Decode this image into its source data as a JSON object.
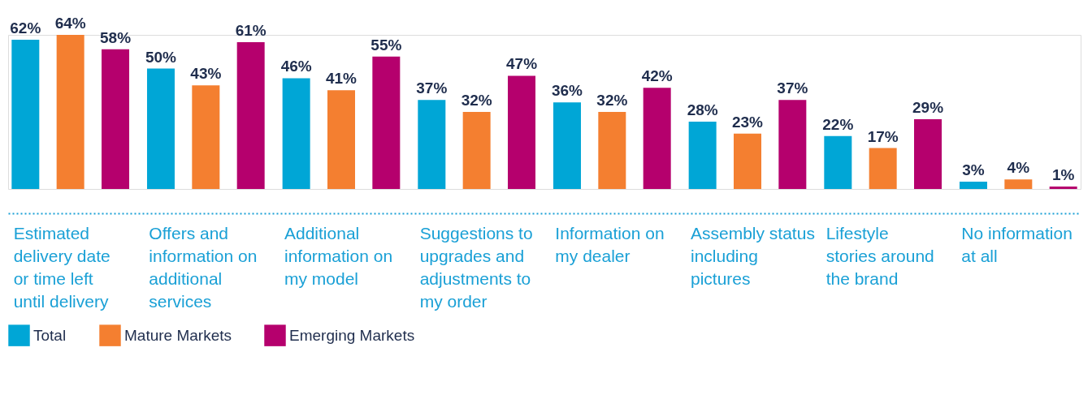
{
  "chart_data": {
    "type": "bar",
    "categories": [
      "Estimated delivery date or time left until delivery",
      "Offers and information on additional services",
      "Additional information on my model",
      "Suggestions to upgrades and adjustments to my order",
      "Information on my dealer",
      "Assembly status including pictures",
      "Lifestyle stories around the brand",
      "No information at all"
    ],
    "series": [
      {
        "name": "Total",
        "color": "#00a6d6",
        "values": [
          62,
          50,
          46,
          37,
          36,
          28,
          22,
          3
        ],
        "value_labels": [
          "62%",
          "50%",
          "46%",
          "37%",
          "36%",
          "28%",
          "22%",
          "3%"
        ]
      },
      {
        "name": "Mature Markets",
        "color": "#f47f30",
        "values": [
          64,
          43,
          41,
          32,
          32,
          23,
          17,
          4
        ],
        "value_labels": [
          "64%",
          "43%",
          "41%",
          "32%",
          "32%",
          "23%",
          "17%",
          "4%"
        ]
      },
      {
        "name": "Emerging  Markets",
        "color": "#b5006d",
        "values": [
          58,
          61,
          55,
          47,
          42,
          37,
          29,
          1
        ],
        "value_labels": [
          "58%",
          "61%",
          "55%",
          "47%",
          "42%",
          "37%",
          "29%",
          "1%"
        ]
      }
    ],
    "legend": "bottom left",
    "grid": false
  }
}
